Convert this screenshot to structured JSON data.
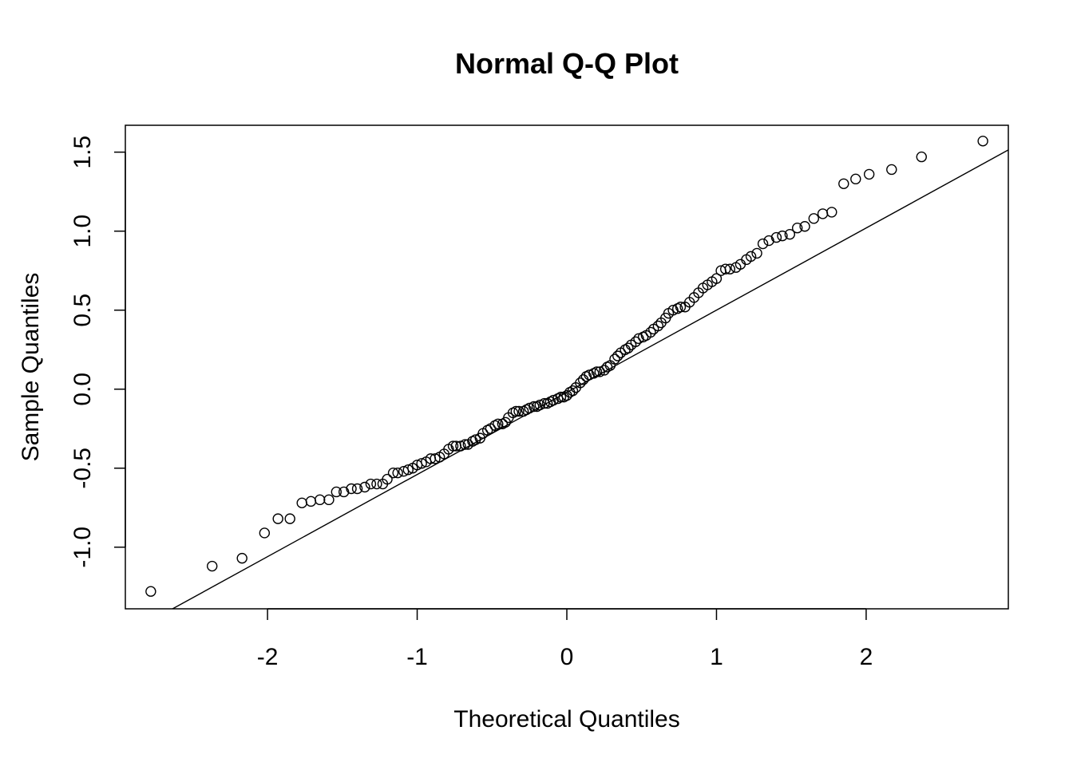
{
  "chart_data": {
    "type": "scatter",
    "title": "Normal Q-Q Plot",
    "xlabel": "Theoretical Quantiles",
    "ylabel": "Sample Quantiles",
    "xlim": [
      -2.95,
      2.95
    ],
    "ylim": [
      -1.39,
      1.67
    ],
    "x_ticks": [
      -2,
      -1,
      0,
      1,
      2
    ],
    "x_tick_labels": [
      "-2",
      "-1",
      "0",
      "1",
      "2"
    ],
    "y_ticks": [
      -1.0,
      -0.5,
      0.0,
      0.5,
      1.0,
      1.5
    ],
    "y_tick_labels": [
      "-1.0",
      "-0.5",
      "0.0",
      "0.5",
      "1.0",
      "1.5"
    ],
    "grid": false,
    "legend": "none",
    "reference_line": {
      "slope": 0.52,
      "intercept": -0.02
    },
    "points": [
      [
        -2.78,
        -1.28
      ],
      [
        -2.37,
        -1.12
      ],
      [
        -2.17,
        -1.07
      ],
      [
        -2.02,
        -0.91
      ],
      [
        -1.93,
        -0.82
      ],
      [
        -1.85,
        -0.82
      ],
      [
        -1.77,
        -0.72
      ],
      [
        -1.71,
        -0.71
      ],
      [
        -1.65,
        -0.7
      ],
      [
        -1.59,
        -0.7
      ],
      [
        -1.54,
        -0.65
      ],
      [
        -1.49,
        -0.65
      ],
      [
        -1.44,
        -0.63
      ],
      [
        -1.4,
        -0.63
      ],
      [
        -1.35,
        -0.62
      ],
      [
        -1.31,
        -0.6
      ],
      [
        -1.27,
        -0.6
      ],
      [
        -1.23,
        -0.6
      ],
      [
        -1.2,
        -0.57
      ],
      [
        -1.16,
        -0.53
      ],
      [
        -1.13,
        -0.53
      ],
      [
        -1.09,
        -0.52
      ],
      [
        -1.06,
        -0.51
      ],
      [
        -1.03,
        -0.5
      ],
      [
        -1.0,
        -0.48
      ],
      [
        -0.97,
        -0.47
      ],
      [
        -0.94,
        -0.46
      ],
      [
        -0.91,
        -0.44
      ],
      [
        -0.88,
        -0.44
      ],
      [
        -0.85,
        -0.43
      ],
      [
        -0.82,
        -0.41
      ],
      [
        -0.79,
        -0.38
      ],
      [
        -0.76,
        -0.36
      ],
      [
        -0.74,
        -0.36
      ],
      [
        -0.71,
        -0.36
      ],
      [
        -0.68,
        -0.35
      ],
      [
        -0.66,
        -0.35
      ],
      [
        -0.63,
        -0.33
      ],
      [
        -0.61,
        -0.32
      ],
      [
        -0.58,
        -0.31
      ],
      [
        -0.56,
        -0.28
      ],
      [
        -0.53,
        -0.26
      ],
      [
        -0.51,
        -0.25
      ],
      [
        -0.48,
        -0.23
      ],
      [
        -0.46,
        -0.22
      ],
      [
        -0.43,
        -0.22
      ],
      [
        -0.41,
        -0.21
      ],
      [
        -0.39,
        -0.18
      ],
      [
        -0.36,
        -0.15
      ],
      [
        -0.34,
        -0.14
      ],
      [
        -0.32,
        -0.14
      ],
      [
        -0.29,
        -0.14
      ],
      [
        -0.27,
        -0.13
      ],
      [
        -0.25,
        -0.12
      ],
      [
        -0.22,
        -0.11
      ],
      [
        -0.2,
        -0.11
      ],
      [
        -0.18,
        -0.1
      ],
      [
        -0.15,
        -0.09
      ],
      [
        -0.13,
        -0.09
      ],
      [
        -0.11,
        -0.08
      ],
      [
        -0.09,
        -0.07
      ],
      [
        -0.06,
        -0.06
      ],
      [
        -0.04,
        -0.05
      ],
      [
        -0.02,
        -0.05
      ],
      [
        0.0,
        -0.04
      ],
      [
        0.02,
        -0.02
      ],
      [
        0.04,
        -0.01
      ],
      [
        0.06,
        0.01
      ],
      [
        0.09,
        0.04
      ],
      [
        0.11,
        0.06
      ],
      [
        0.13,
        0.08
      ],
      [
        0.15,
        0.09
      ],
      [
        0.18,
        0.1
      ],
      [
        0.2,
        0.11
      ],
      [
        0.22,
        0.11
      ],
      [
        0.25,
        0.12
      ],
      [
        0.27,
        0.14
      ],
      [
        0.29,
        0.15
      ],
      [
        0.32,
        0.19
      ],
      [
        0.34,
        0.21
      ],
      [
        0.36,
        0.23
      ],
      [
        0.39,
        0.25
      ],
      [
        0.41,
        0.26
      ],
      [
        0.43,
        0.28
      ],
      [
        0.46,
        0.3
      ],
      [
        0.48,
        0.32
      ],
      [
        0.51,
        0.33
      ],
      [
        0.53,
        0.34
      ],
      [
        0.56,
        0.36
      ],
      [
        0.58,
        0.38
      ],
      [
        0.61,
        0.4
      ],
      [
        0.63,
        0.42
      ],
      [
        0.66,
        0.45
      ],
      [
        0.68,
        0.48
      ],
      [
        0.71,
        0.5
      ],
      [
        0.74,
        0.51
      ],
      [
        0.76,
        0.52
      ],
      [
        0.79,
        0.52
      ],
      [
        0.82,
        0.55
      ],
      [
        0.85,
        0.58
      ],
      [
        0.88,
        0.61
      ],
      [
        0.91,
        0.64
      ],
      [
        0.94,
        0.66
      ],
      [
        0.97,
        0.68
      ],
      [
        1.0,
        0.7
      ],
      [
        1.03,
        0.75
      ],
      [
        1.06,
        0.76
      ],
      [
        1.09,
        0.76
      ],
      [
        1.13,
        0.77
      ],
      [
        1.16,
        0.79
      ],
      [
        1.2,
        0.82
      ],
      [
        1.23,
        0.84
      ],
      [
        1.27,
        0.86
      ],
      [
        1.31,
        0.92
      ],
      [
        1.35,
        0.94
      ],
      [
        1.4,
        0.96
      ],
      [
        1.44,
        0.97
      ],
      [
        1.49,
        0.98
      ],
      [
        1.54,
        1.02
      ],
      [
        1.59,
        1.03
      ],
      [
        1.65,
        1.08
      ],
      [
        1.71,
        1.11
      ],
      [
        1.77,
        1.12
      ],
      [
        1.85,
        1.3
      ],
      [
        1.93,
        1.33
      ],
      [
        2.02,
        1.36
      ],
      [
        2.17,
        1.39
      ],
      [
        2.37,
        1.47
      ],
      [
        2.78,
        1.57
      ]
    ]
  }
}
